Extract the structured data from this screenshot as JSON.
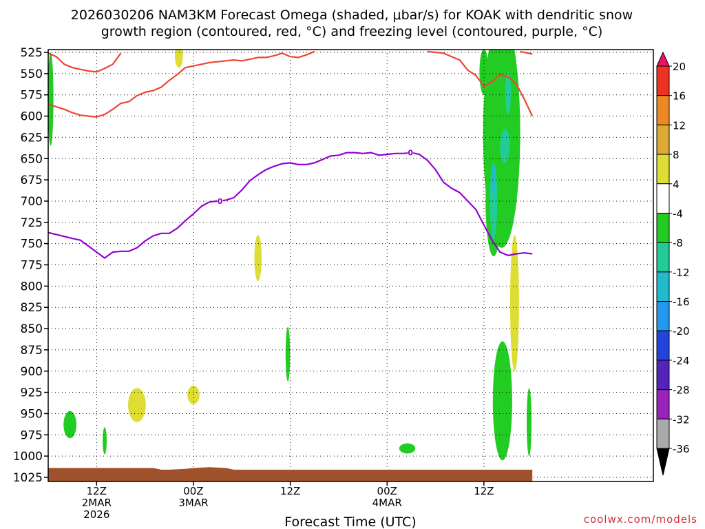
{
  "chart_data": {
    "type": "time-pressure cross-section",
    "title_line1": "2026030206 NAM3KM Forecast Omega (shaded, μbar/s) for KOAK with dendritic snow",
    "title_line2": "growth region (contoured, red, °C) and freezing level (contoured, purple, °C)",
    "xlabel": "Forecast Time (UTC)",
    "credit": "coolwx.com/models",
    "y_ticks": [
      "525",
      "550",
      "575",
      "600",
      "625",
      "650",
      "675",
      "700",
      "725",
      "750",
      "775",
      "800",
      "825",
      "850",
      "875",
      "900",
      "925",
      "950",
      "975",
      "1000",
      "1025"
    ],
    "y_range_hPa": [
      525,
      1025
    ],
    "x_range_hours": [
      6,
      81
    ],
    "x_ticks": [
      {
        "hour": 12,
        "lines": [
          "12Z",
          "2MAR",
          "2026"
        ]
      },
      {
        "hour": 24,
        "lines": [
          "00Z",
          "3MAR"
        ]
      },
      {
        "hour": 36,
        "lines": [
          "12Z"
        ]
      },
      {
        "hour": 48,
        "lines": [
          "00Z",
          "4MAR"
        ]
      },
      {
        "hour": 60,
        "lines": [
          "12Z"
        ]
      }
    ],
    "colorbar": {
      "labels": [
        "20",
        "16",
        "12",
        "8",
        "4",
        "-4",
        "-8",
        "-12",
        "-16",
        "-20",
        "-24",
        "-28",
        "-32",
        "-36"
      ],
      "colors": [
        "#ee1166",
        "#ee3322",
        "#ee8822",
        "#ddaa33",
        "#dddd33",
        "#ffffff",
        "#22cc22",
        "#22cc99",
        "#22bbcc",
        "#2299ee",
        "#2244dd",
        "#5522bb",
        "#9922bb",
        "#aaaaaa",
        "#000000"
      ]
    },
    "freezing_level": {
      "label": "0",
      "color": "#9400d3",
      "points": [
        [
          6,
          737
        ],
        [
          9,
          744
        ],
        [
          10,
          746
        ],
        [
          11,
          753
        ],
        [
          12,
          760
        ],
        [
          13,
          767
        ],
        [
          14,
          760
        ],
        [
          15,
          759
        ],
        [
          16,
          759
        ],
        [
          17,
          755
        ],
        [
          18,
          747
        ],
        [
          19,
          741
        ],
        [
          20,
          738
        ],
        [
          21,
          738
        ],
        [
          22,
          732
        ],
        [
          23,
          723
        ],
        [
          24,
          715
        ],
        [
          25,
          706
        ],
        [
          26,
          701
        ],
        [
          27,
          700
        ],
        [
          28,
          699
        ],
        [
          29,
          696
        ],
        [
          30,
          687
        ],
        [
          31,
          676
        ],
        [
          32,
          669
        ],
        [
          33,
          663
        ],
        [
          34,
          659
        ],
        [
          35,
          656
        ],
        [
          36,
          655
        ],
        [
          37,
          657
        ],
        [
          38,
          657
        ],
        [
          39,
          655
        ],
        [
          40,
          651
        ],
        [
          41,
          647
        ],
        [
          42,
          646
        ],
        [
          43,
          643
        ],
        [
          44,
          643
        ],
        [
          45,
          644
        ],
        [
          46,
          643
        ],
        [
          47,
          646
        ],
        [
          48,
          645
        ],
        [
          49,
          644
        ],
        [
          50,
          644
        ],
        [
          51,
          643
        ],
        [
          52,
          645
        ],
        [
          53,
          652
        ],
        [
          54,
          663
        ],
        [
          55,
          678
        ],
        [
          56,
          685
        ],
        [
          57,
          690
        ],
        [
          58,
          700
        ],
        [
          59,
          710
        ],
        [
          60,
          728
        ],
        [
          61,
          746
        ],
        [
          62,
          760
        ],
        [
          63,
          764
        ],
        [
          64,
          762
        ],
        [
          65,
          761
        ],
        [
          66,
          762
        ]
      ]
    },
    "dgz_contours": [
      {
        "color": "#ee4433",
        "points": [
          [
            6,
            526
          ],
          [
            7,
            530
          ],
          [
            8,
            539
          ],
          [
            9,
            543
          ],
          [
            10,
            545
          ],
          [
            11,
            547
          ],
          [
            12,
            548
          ],
          [
            13,
            544
          ],
          [
            14,
            539
          ],
          [
            15,
            526
          ]
        ]
      },
      {
        "color": "#ee4433",
        "points": [
          [
            6,
            586
          ],
          [
            7,
            589
          ],
          [
            8,
            592
          ],
          [
            9,
            596
          ],
          [
            10,
            599
          ],
          [
            11,
            600
          ],
          [
            12,
            601
          ],
          [
            13,
            598
          ],
          [
            14,
            592
          ],
          [
            15,
            585
          ],
          [
            16,
            583
          ],
          [
            17,
            576
          ],
          [
            18,
            572
          ],
          [
            19,
            570
          ],
          [
            20,
            566
          ],
          [
            21,
            558
          ],
          [
            22,
            551
          ],
          [
            23,
            543
          ],
          [
            24,
            541
          ],
          [
            25,
            539
          ],
          [
            26,
            537
          ],
          [
            27,
            536
          ],
          [
            28,
            535
          ],
          [
            29,
            534
          ],
          [
            30,
            535
          ],
          [
            31,
            533
          ],
          [
            32,
            531
          ],
          [
            33,
            531
          ],
          [
            34,
            529
          ],
          [
            35,
            526
          ],
          [
            36,
            530
          ],
          [
            37,
            531
          ],
          [
            38,
            528
          ],
          [
            39,
            524
          ]
        ]
      },
      {
        "color": "#ee4433",
        "points": [
          [
            53,
            524
          ],
          [
            54,
            525
          ],
          [
            55,
            526
          ],
          [
            56,
            530
          ],
          [
            57,
            534
          ],
          [
            58,
            546
          ],
          [
            59,
            552
          ],
          [
            60,
            565
          ],
          [
            61,
            560
          ],
          [
            62,
            551
          ],
          [
            63,
            554
          ],
          [
            64,
            562
          ],
          [
            65,
            580
          ],
          [
            66,
            600
          ]
        ]
      },
      {
        "color": "#ee4433",
        "points": [
          [
            64.5,
            524
          ],
          [
            66,
            527
          ]
        ]
      }
    ],
    "omega_regions": [
      {
        "value_range": "4 to 8",
        "color": "#dddd33",
        "center": [
          22.2,
          529
        ],
        "semi_axes": [
          0.5,
          14
        ]
      },
      {
        "value_range": "4 to 8",
        "color": "#dddd33",
        "center": [
          32.0,
          767
        ],
        "semi_axes": [
          0.45,
          27
        ]
      },
      {
        "value_range": "4 to 8",
        "color": "#dddd33",
        "center": [
          17.0,
          940
        ],
        "semi_axes": [
          1.1,
          20
        ]
      },
      {
        "value_range": "4 to 8",
        "color": "#dddd33",
        "center": [
          24.0,
          928
        ],
        "semi_axes": [
          0.75,
          11
        ]
      },
      {
        "value_range": "4 to 8",
        "color": "#dddd33",
        "center": [
          63.8,
          820
        ],
        "semi_axes": [
          0.55,
          80
        ]
      },
      {
        "value_range": "-4 to -8",
        "color": "#22cc22",
        "center": [
          6.3,
          580
        ],
        "semi_axes": [
          0.35,
          55
        ]
      },
      {
        "value_range": "-4 to -8",
        "color": "#22cc22",
        "center": [
          8.7,
          963
        ],
        "semi_axes": [
          0.8,
          16
        ]
      },
      {
        "value_range": "-4 to -8",
        "color": "#22cc22",
        "center": [
          13.0,
          982
        ],
        "semi_axes": [
          0.25,
          16
        ]
      },
      {
        "value_range": "-4 to -8",
        "color": "#22cc22",
        "center": [
          35.7,
          880
        ],
        "semi_axes": [
          0.28,
          32
        ]
      },
      {
        "value_range": "-4 to -8",
        "color": "#22cc22",
        "center": [
          50.5,
          991
        ],
        "semi_axes": [
          1.0,
          6
        ]
      },
      {
        "value_range": "-4 to -8",
        "color": "#22cc22",
        "center": [
          60.0,
          548
        ],
        "semi_axes": [
          0.55,
          27
        ]
      },
      {
        "value_range": "-4 to -8",
        "color": "#22cc22",
        "center": [
          62.2,
          620
        ],
        "semi_axes": [
          2.3,
          135
        ]
      },
      {
        "value_range": "-4 to -8",
        "color": "#22cc22",
        "center": [
          61.2,
          700
        ],
        "semi_axes": [
          1.0,
          65
        ]
      },
      {
        "value_range": "-4 to -8",
        "color": "#22cc22",
        "center": [
          62.3,
          935
        ],
        "semi_axes": [
          1.2,
          70
        ]
      },
      {
        "value_range": "-4 to -8",
        "color": "#22cc22",
        "center": [
          65.6,
          960
        ],
        "semi_axes": [
          0.3,
          40
        ]
      },
      {
        "value_range": "-8 to -12",
        "color": "#22cc99",
        "center": [
          63.0,
          573
        ],
        "semi_axes": [
          0.35,
          25
        ]
      },
      {
        "value_range": "-8 to -12",
        "color": "#22cc99",
        "center": [
          62.6,
          635
        ],
        "semi_axes": [
          0.6,
          20
        ]
      },
      {
        "value_range": "-8 to -12",
        "color": "#22cc99",
        "center": [
          61.2,
          700
        ],
        "semi_axes": [
          0.45,
          45
        ]
      },
      {
        "value_range": "-12 to -16",
        "color": "#22bbcc",
        "center": [
          61.2,
          675
        ],
        "semi_axes": [
          0.25,
          18
        ]
      }
    ],
    "surface_terrain": {
      "color": "#a0522d",
      "top_hPa": 1014,
      "points": [
        [
          6,
          1014
        ],
        [
          19,
          1014
        ],
        [
          20,
          1016
        ],
        [
          21,
          1016
        ],
        [
          23,
          1015
        ],
        [
          24,
          1014
        ],
        [
          26,
          1013
        ],
        [
          28,
          1014
        ],
        [
          29,
          1016
        ],
        [
          30,
          1016
        ],
        [
          66,
          1016
        ]
      ]
    }
  }
}
